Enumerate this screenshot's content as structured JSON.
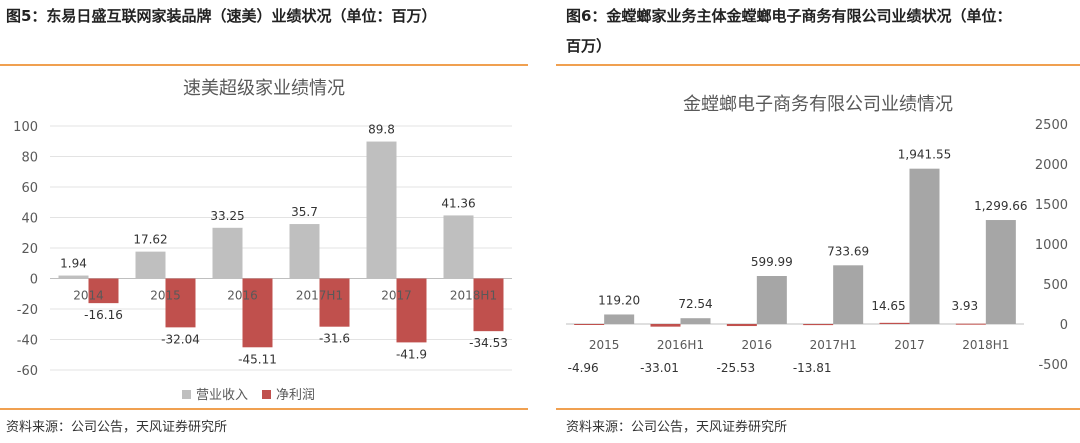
{
  "left": {
    "fig_title": "图5：东易日盛互联网家装品牌（速美）业绩状况（单位：百万）",
    "source": "资料来源：公司公告，天风证券研究所",
    "chart_data": {
      "type": "bar",
      "title": "速美超级家业绩情况",
      "categories": [
        "2014",
        "2015",
        "2016",
        "2017H1",
        "2017",
        "2018H1"
      ],
      "series": [
        {
          "name": "营业收入",
          "color": "#bfbfbf",
          "values": [
            1.94,
            17.62,
            33.25,
            35.7,
            89.8,
            41.36
          ]
        },
        {
          "name": "净利润",
          "color": "#c0504d",
          "values": [
            -16.16,
            -32.04,
            -45.11,
            -31.6,
            -41.9,
            -34.53
          ]
        }
      ],
      "ylim": [
        -60,
        100
      ],
      "yticks": [
        100,
        80,
        60,
        40,
        20,
        0,
        -20,
        -40,
        -60
      ],
      "grid": true,
      "legend": "bottom"
    }
  },
  "right": {
    "fig_title_line1": "图6：金螳螂家业务主体金螳螂电子商务有限公司业绩状况（单位：",
    "fig_title_line2": "百万）",
    "source": "资料来源：公司公告，天风证券研究所",
    "chart_data": {
      "type": "bar",
      "title": "金螳螂电子商务有限公司业绩情况",
      "categories": [
        "2015",
        "2016H1",
        "2016",
        "2017H1",
        "2017",
        "2018H1"
      ],
      "series": [
        {
          "color": "#c0504d",
          "values": [
            -4.96,
            -33.01,
            -25.53,
            -13.81,
            14.65,
            3.93
          ],
          "labels": [
            "-4.96",
            "-33.01",
            "-25.53",
            "-13.81",
            "14.65",
            "3.93"
          ]
        },
        {
          "color": "#a6a6a6",
          "values": [
            119.2,
            72.54,
            599.99,
            733.69,
            1941.55,
            1299.66
          ],
          "labels": [
            "119.20",
            "72.54",
            "599.99",
            "733.69",
            "1,941.55",
            "1,299.66"
          ]
        }
      ],
      "ylim": [
        -500,
        2500
      ],
      "yticks": [
        2500,
        2000,
        1500,
        1000,
        500,
        0,
        -500
      ],
      "grid": false,
      "axis_side": "right"
    }
  }
}
